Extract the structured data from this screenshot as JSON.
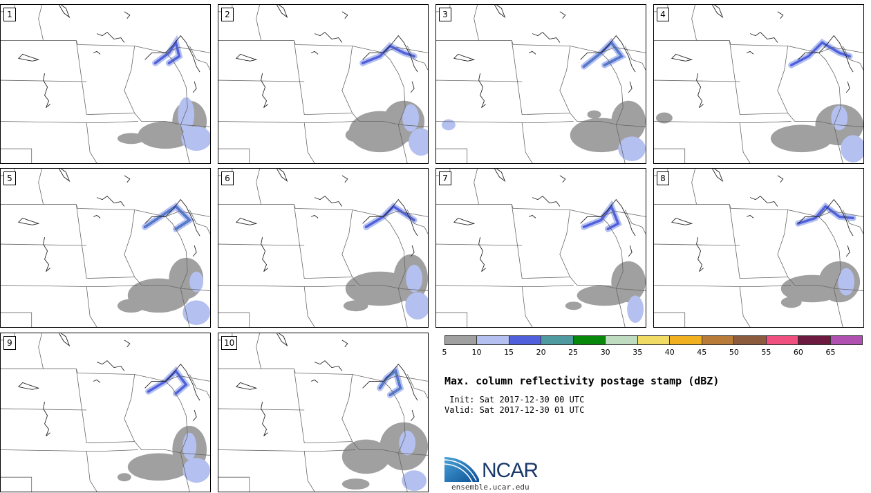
{
  "panels": [
    {
      "label": "1"
    },
    {
      "label": "2"
    },
    {
      "label": "3"
    },
    {
      "label": "4"
    },
    {
      "label": "5"
    },
    {
      "label": "6"
    },
    {
      "label": "7"
    },
    {
      "label": "8"
    },
    {
      "label": "9"
    },
    {
      "label": "10"
    }
  ],
  "colorbar": {
    "colors": [
      "#a0a0a0",
      "#b4c0f0",
      "#5060dc",
      "#4e9aa0",
      "#08880a",
      "#c0dcc0",
      "#f0dc64",
      "#f0b020",
      "#b87c38",
      "#8c5a3c",
      "#f05080",
      "#6c1a40",
      "#b050b0"
    ],
    "ticks": [
      "5",
      "10",
      "15",
      "20",
      "25",
      "30",
      "35",
      "40",
      "45",
      "50",
      "55",
      "60",
      "65"
    ]
  },
  "title": "Max. column reflectivity postage stamp (dBZ)",
  "init": " Init: Sat 2017-12-30 00 UTC",
  "valid": "Valid: Sat 2017-12-30 01 UTC",
  "logo": {
    "text": "NCAR",
    "url_text": "ensemble.ucar.edu"
  }
}
